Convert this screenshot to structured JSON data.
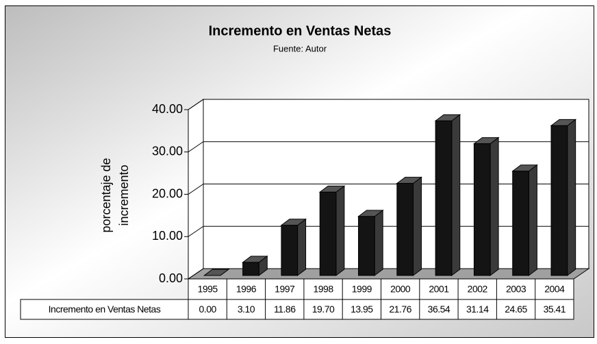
{
  "chart_data": {
    "type": "bar3d",
    "title": "Incremento en Ventas Netas",
    "subtitle": "Fuente: Autor",
    "ylabel": [
      "porcentaje de",
      "incremento"
    ],
    "categories": [
      "1995",
      "1996",
      "1997",
      "1998",
      "1999",
      "2000",
      "2001",
      "2002",
      "2003",
      "2004"
    ],
    "series": [
      {
        "name": "Incremento en Ventas Netas",
        "color": "#141414",
        "values": [
          0,
          3.1,
          11.86,
          19.7,
          13.95,
          21.76,
          36.54,
          31.14,
          24.65,
          35.41
        ],
        "value_labels": [
          "0.00",
          "3.10",
          "11.86",
          "19.70",
          "13.95",
          "21.76",
          "36.54",
          "31.14",
          "24.65",
          "35.41"
        ]
      }
    ],
    "ylim": [
      0,
      40
    ],
    "yticks": [
      {
        "value": 0,
        "label": "0.00"
      },
      {
        "value": 10,
        "label": "10.00"
      },
      {
        "value": 20,
        "label": "20.00"
      },
      {
        "value": 30,
        "label": "30.00"
      },
      {
        "value": 40,
        "label": "40.00"
      }
    ],
    "grid": true,
    "data_table": true
  }
}
